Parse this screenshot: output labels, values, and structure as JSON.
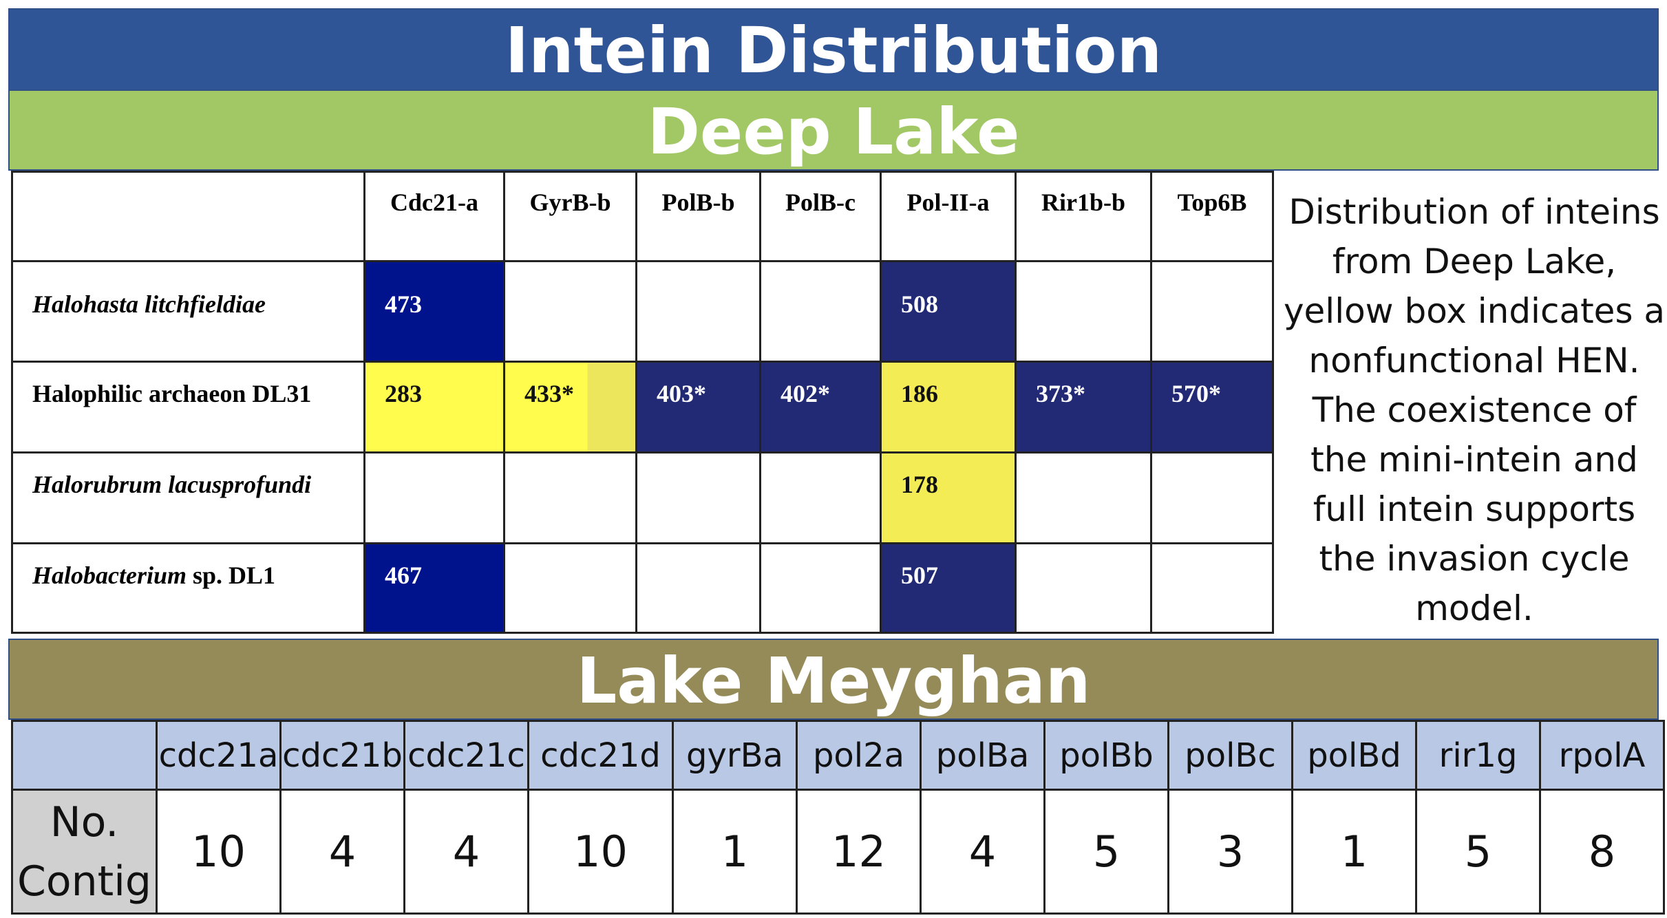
{
  "title": "Intein Distribution",
  "deep_lake": {
    "heading": "Deep Lake",
    "columns": [
      "Cdc21-a",
      "GyrB-b",
      "PolB-b",
      "PolB-c",
      "Pol-II-a",
      "Rir1b-b",
      "Top6B"
    ],
    "rows": [
      {
        "organism": "Halohasta litchfieldiae",
        "organism_suffix": "",
        "cells": [
          "473",
          "",
          "",
          "",
          "508",
          "",
          ""
        ]
      },
      {
        "organism": "Halophilic archaeon DL31",
        "organism_suffix": "",
        "cells": [
          "283",
          "433*",
          "403*",
          "402*",
          "186",
          "373*",
          "570*"
        ]
      },
      {
        "organism": "Halorubrum lacusprofundi",
        "organism_suffix": "",
        "cells": [
          "",
          "",
          "",
          "",
          "178",
          "",
          ""
        ]
      },
      {
        "organism": "Halobacterium",
        "organism_suffix": " sp. DL1",
        "cells": [
          "467",
          "",
          "",
          "",
          "507",
          "",
          ""
        ]
      }
    ],
    "cell_colors": {
      "navy": "#00128c",
      "indigo": "#232a75",
      "yellow": "#fffc4d"
    },
    "caption": "Distribution of inteins from Deep Lake, yellow box indicates a nonfunctional HEN. The coexistence of the mini-intein and full intein supports the invasion cycle model."
  },
  "lake_meyghan": {
    "heading": "Lake Meyghan",
    "columns": [
      "cdc21a",
      "cdc21b",
      "cdc21c",
      "cdc21d",
      "gyrBa",
      "pol2a",
      "polBa",
      "polBb",
      "polBc",
      "polBd",
      "rir1g",
      "rpolA"
    ],
    "row_label": "No. Contig",
    "values": [
      "10",
      "4",
      "4",
      "10",
      "1",
      "12",
      "4",
      "5",
      "3",
      "1",
      "5",
      "8"
    ]
  },
  "colors": {
    "title_band": "#2f5597",
    "deep_lake_band": "#a2c865",
    "meyghan_band": "#958b59",
    "meyghan_header": "#b9c8e4"
  }
}
